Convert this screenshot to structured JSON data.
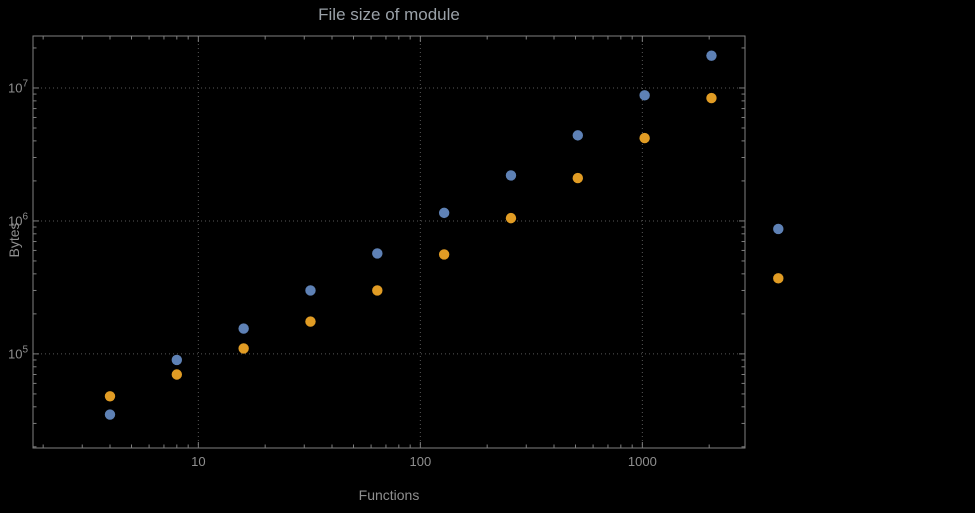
{
  "title": "File size of module",
  "chart_data": {
    "type": "scatter",
    "title": "File size of module",
    "xlabel": "Functions",
    "ylabel": "Bytes",
    "x_scale": "log",
    "y_scale": "log",
    "grid": true,
    "legend": "none",
    "x_range": [
      1.8,
      2900
    ],
    "y_range": [
      19600,
      24600000
    ],
    "x_ticks": [
      10,
      100,
      1000
    ],
    "x_tick_labels": [
      "10",
      "100",
      "1000"
    ],
    "y_ticks": [
      100000,
      1000000,
      10000000
    ],
    "y_tick_base": "10",
    "y_tick_exponents": [
      "5",
      "6",
      "7"
    ],
    "x": [
      4,
      8,
      16,
      32,
      64,
      128,
      256,
      512,
      1024,
      2048,
      4096
    ],
    "series": [
      {
        "name": "series-1-blue",
        "color": "#5e81b5",
        "values": [
          35000,
          90000,
          155000,
          300000,
          570000,
          1150000,
          2200000,
          4400000,
          8800000,
          17500000,
          870000
        ]
      },
      {
        "name": "series-2-orange",
        "color": "#e19c24",
        "values": [
          48000,
          70000,
          110000,
          175000,
          300000,
          560000,
          1050000,
          2100000,
          4200000,
          8400000,
          370000
        ]
      }
    ]
  },
  "colors": {
    "background": "#000000",
    "frame": "#7f7f7f",
    "grid": "#575757",
    "tick_labels": "#8f8f8f",
    "title": "#9aa1a8",
    "point_blue": "#5e81b5",
    "point_orange": "#e19c24"
  }
}
